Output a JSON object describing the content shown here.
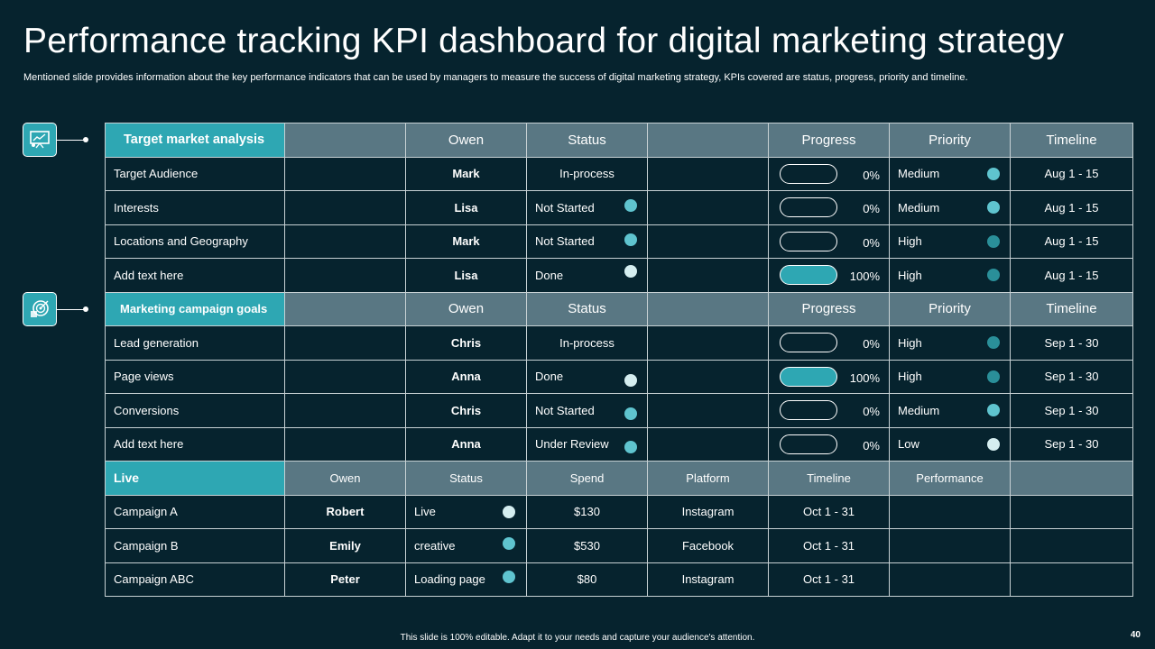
{
  "title": "Performance tracking KPI dashboard for digital marketing strategy",
  "subtitle": "Mentioned slide provides information about the key performance indicators that can be used by managers to measure the success of digital marketing strategy, KPIs covered are status, progress, priority and timeline.",
  "colors": {
    "background": "#06232e",
    "accent": "#2ea7b3",
    "header": "#597783",
    "dot_light": "#5fc4cf",
    "dot_dark": "#2a8f99",
    "dot_pale": "#d5eef0"
  },
  "section1": {
    "header": {
      "name": "Target market analysis",
      "owner": "Owen",
      "status": "Status",
      "progress": "Progress",
      "priority": "Priority",
      "timeline": "Timeline"
    },
    "rows": [
      {
        "task": "Target Audience",
        "owner": "Mark",
        "status": "In-process",
        "progress": "0%",
        "progress_value": 0,
        "priority": "Medium",
        "timeline": "Aug 1 - 15"
      },
      {
        "task": "Interests",
        "owner": "Lisa",
        "status": "Not Started",
        "progress": "0%",
        "progress_value": 0,
        "priority": "Medium",
        "timeline": "Aug 1 - 15"
      },
      {
        "task": "Locations and Geography",
        "owner": "Mark",
        "status": "Not Started",
        "progress": "0%",
        "progress_value": 0,
        "priority": "High",
        "timeline": "Aug 1 - 15"
      },
      {
        "task": "Add text here",
        "owner": "Lisa",
        "status": "Done",
        "progress": "100%",
        "progress_value": 100,
        "priority": "High",
        "timeline": "Aug 1 - 15"
      }
    ]
  },
  "section2": {
    "header": {
      "name": "Marketing campaign goals",
      "owner": "Owen",
      "status": "Status",
      "progress": "Progress",
      "priority": "Priority",
      "timeline": "Timeline"
    },
    "rows": [
      {
        "task": "Lead generation",
        "owner": "Chris",
        "status": "In-process",
        "progress": "0%",
        "progress_value": 0,
        "priority": "High",
        "timeline": "Sep 1 - 30"
      },
      {
        "task": "Page views",
        "owner": "Anna",
        "status": "Done",
        "progress": "100%",
        "progress_value": 100,
        "priority": "High",
        "timeline": "Sep 1 - 30"
      },
      {
        "task": "Conversions",
        "owner": "Chris",
        "status": "Not Started",
        "progress": "0%",
        "progress_value": 0,
        "priority": "Medium",
        "timeline": "Sep 1 - 30"
      },
      {
        "task": "Add text here",
        "owner": "Anna",
        "status": "Under Review",
        "progress": "0%",
        "progress_value": 0,
        "priority": "Low",
        "timeline": "Sep 1 - 30"
      }
    ]
  },
  "section3": {
    "header": {
      "name": "Live",
      "owner": "Owen",
      "status": "Status",
      "spend": "Spend",
      "platform": "Platform",
      "timeline": "Timeline",
      "performance": "Performance"
    },
    "rows": [
      {
        "campaign": "Campaign A",
        "owner": "Robert",
        "status": "Live",
        "spend": "$130",
        "platform": "Instagram",
        "timeline": "Oct 1 - 31"
      },
      {
        "campaign": "Campaign B",
        "owner": "Emily",
        "status": "creative",
        "spend": "$530",
        "platform": "Facebook",
        "timeline": "Oct 1 - 31"
      },
      {
        "campaign": "Campaign ABC",
        "owner": "Peter",
        "status": "Loading page",
        "spend": "$80",
        "platform": "Instagram",
        "timeline": "Oct 1 - 31"
      }
    ]
  },
  "footer": "This slide is 100% editable. Adapt it to your needs and capture your audience's attention.",
  "page_number": "40",
  "icons": {
    "section1": "presentation-chart-icon",
    "section2": "target-goal-icon"
  }
}
